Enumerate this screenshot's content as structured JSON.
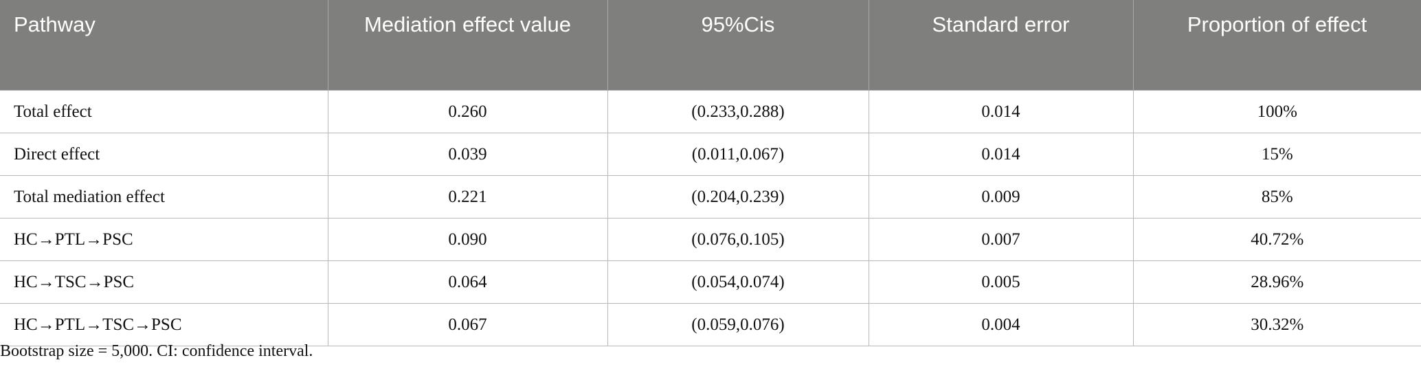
{
  "table": {
    "headers": [
      "Pathway",
      "Mediation effect value",
      "95%Cis",
      "Standard error",
      "Proportion of effect"
    ],
    "rows": [
      [
        "Total effect",
        "0.260",
        "(0.233,0.288)",
        "0.014",
        "100%"
      ],
      [
        "Direct effect",
        "0.039",
        "(0.011,0.067)",
        "0.014",
        "15%"
      ],
      [
        "Total mediation effect",
        "0.221",
        "(0.204,0.239)",
        "0.009",
        "85%"
      ],
      [
        "HC→PTL→PSC",
        "0.090",
        "(0.076,0.105)",
        "0.007",
        "40.72%"
      ],
      [
        "HC→TSC→PSC",
        "0.064",
        "(0.054,0.074)",
        "0.005",
        "28.96%"
      ],
      [
        "HC→PTL→TSC→PSC",
        "0.067",
        "(0.059,0.076)",
        "0.004",
        "30.32%"
      ]
    ]
  },
  "footnote": "Bootstrap size = 5,000. CI: confidence interval."
}
